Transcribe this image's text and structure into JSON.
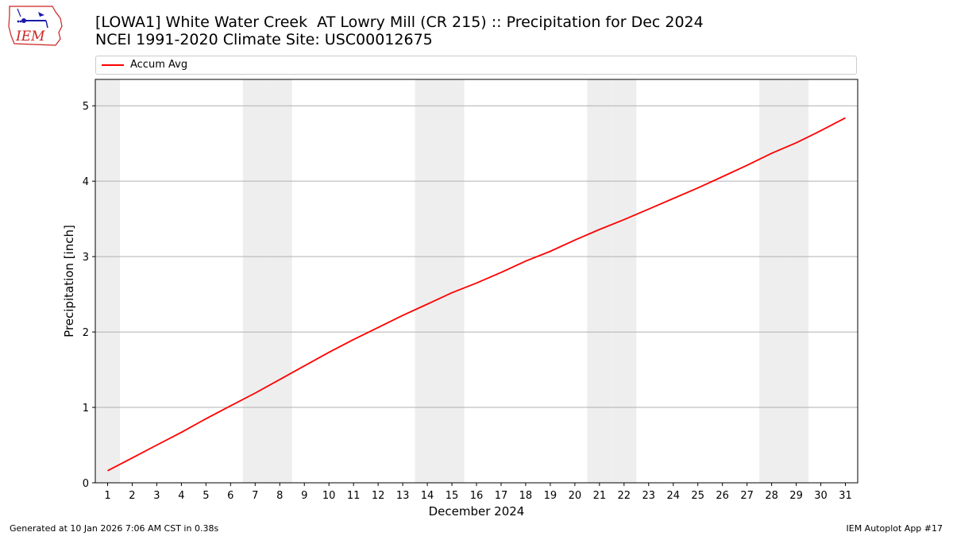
{
  "header": {
    "title_line1": "[LOWA1] White Water Creek  AT Lowry Mill (CR 215) :: Precipitation for Dec 2024",
    "title_line2": "NCEI 1991-2020 Climate Site: USC00012675"
  },
  "logo": {
    "text": "IEM",
    "icon": "iem-iowa-logo-icon"
  },
  "footer": {
    "left": "Generated at 10 Jan 2026 7:06 AM CST in 0.38s",
    "right": "IEM Autoplot App #17"
  },
  "colors": {
    "series": "#ff0000",
    "weekend": "#eeeeee",
    "grid": "#b0b0b0"
  },
  "chart_data": {
    "type": "line",
    "xlabel": "December 2024",
    "ylabel": "Precipitation [inch]",
    "xlim": [
      0.5,
      31.5
    ],
    "ylim": [
      0,
      5.35
    ],
    "yticks": [
      0,
      1,
      2,
      3,
      4,
      5
    ],
    "x": [
      1,
      2,
      3,
      4,
      5,
      6,
      7,
      8,
      9,
      10,
      11,
      12,
      13,
      14,
      15,
      16,
      17,
      18,
      19,
      20,
      21,
      22,
      23,
      24,
      25,
      26,
      27,
      28,
      29,
      30,
      31
    ],
    "weekend_days": [
      1,
      7,
      8,
      14,
      15,
      21,
      22,
      28,
      29
    ],
    "grid": "y",
    "legend_position": "top",
    "series": [
      {
        "name": "Accum Avg",
        "values": [
          0.16,
          0.33,
          0.5,
          0.67,
          0.85,
          1.02,
          1.19,
          1.37,
          1.55,
          1.73,
          1.9,
          2.06,
          2.22,
          2.37,
          2.52,
          2.65,
          2.79,
          2.94,
          3.07,
          3.22,
          3.36,
          3.49,
          3.63,
          3.77,
          3.91,
          4.06,
          4.21,
          4.37,
          4.51,
          4.67,
          4.84
        ]
      }
    ]
  }
}
